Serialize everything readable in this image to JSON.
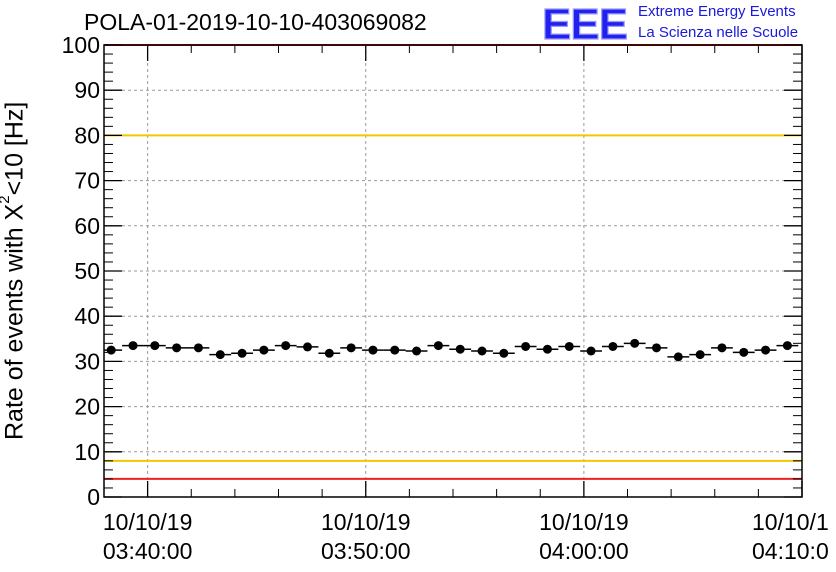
{
  "header": {
    "title": "POLA-01-2019-10-10-403069082",
    "logo_letters": "EEE",
    "logo_line1": "Extreme Energy Events",
    "logo_line2": "La Scienza nelle Scuole"
  },
  "chart_data": {
    "type": "scatter",
    "ylabel_main": "Rate of events with X",
    "ylabel_sup": "2",
    "ylabel_tail": "<10 [Hz]",
    "ylim": [
      0,
      100
    ],
    "y_ticks": [
      "0",
      "10",
      "20",
      "30",
      "40",
      "50",
      "60",
      "70",
      "80",
      "90",
      "100"
    ],
    "x_ticks": [
      {
        "date": "10/10/19",
        "time": "03:40:00",
        "minutes": 0
      },
      {
        "date": "10/10/19",
        "time": "03:50:00",
        "minutes": 10
      },
      {
        "date": "10/10/19",
        "time": "04:00:00",
        "minutes": 20
      },
      {
        "date": "10/10/1",
        "time": "04:10:0",
        "minutes": 30
      }
    ],
    "xlim_minutes": [
      -2,
      30
    ],
    "grid": true,
    "reference_lines": [
      {
        "value": 100,
        "color": "#ee2222"
      },
      {
        "value": 80,
        "color": "#f0c800"
      },
      {
        "value": 8,
        "color": "#f0c800"
      },
      {
        "value": 4,
        "color": "#ee2222"
      }
    ],
    "series": [
      {
        "marker_color": "#000000",
        "points_minutes": [
          -1.67,
          -0.67,
          0.33,
          1.33,
          2.33,
          3.33,
          4.33,
          5.33,
          6.33,
          7.33,
          8.33,
          9.33,
          10.33,
          11.33,
          12.33,
          13.33,
          14.33,
          15.33,
          16.33,
          17.33,
          18.33,
          19.33,
          20.33,
          21.33,
          22.33,
          23.33,
          24.33,
          25.33,
          26.33,
          27.33,
          28.33,
          29.33
        ],
        "values": [
          32.5,
          33.5,
          33.5,
          33.0,
          33.0,
          31.5,
          31.8,
          32.5,
          33.5,
          33.2,
          31.8,
          33.0,
          32.5,
          32.5,
          32.3,
          33.5,
          32.7,
          32.3,
          31.8,
          33.3,
          32.7,
          33.3,
          32.3,
          33.3,
          34.0,
          33.0,
          31.0,
          31.5,
          33.0,
          32.0,
          32.5,
          33.5
        ]
      }
    ]
  }
}
